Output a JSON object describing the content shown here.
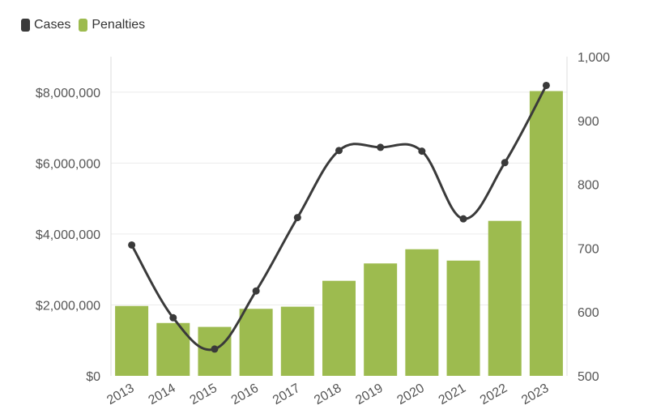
{
  "chart_data": {
    "type": "bar+line",
    "categories": [
      "2013",
      "2014",
      "2015",
      "2016",
      "2017",
      "2018",
      "2019",
      "2020",
      "2021",
      "2022",
      "2023"
    ],
    "series": [
      {
        "name": "Penalties",
        "type": "bar",
        "axis": "left",
        "color": "#9dbb4f",
        "values": [
          1970000,
          1490000,
          1380000,
          1890000,
          1950000,
          2680000,
          3170000,
          3570000,
          3250000,
          4370000,
          8030000
        ]
      },
      {
        "name": "Cases",
        "type": "line",
        "axis": "right",
        "color": "#3a3a3a",
        "values": [
          705,
          591,
          542,
          633,
          748,
          853,
          858,
          852,
          746,
          834,
          955
        ]
      }
    ],
    "y_left": {
      "min": 0,
      "max": 9000000,
      "ticks": [
        0,
        2000000,
        4000000,
        6000000,
        8000000
      ],
      "tick_labels": [
        "$0",
        "$2,000,000",
        "$4,000,000",
        "$6,000,000",
        "$8,000,000"
      ]
    },
    "y_right": {
      "min": 500,
      "max": 1000,
      "ticks": [
        500,
        600,
        700,
        800,
        900,
        1000
      ],
      "tick_labels": [
        "500",
        "600",
        "700",
        "800",
        "900",
        "1,000"
      ]
    },
    "x_tick_labels": [
      "2013",
      "2014",
      "2015",
      "2016",
      "2017",
      "2018",
      "2019",
      "2020",
      "2021",
      "2022",
      "2023"
    ],
    "legend_position": "top-left",
    "grid": true
  },
  "colors": {
    "axis_text": "#555555",
    "grid": "#ececec",
    "axis_line": "#dddddd"
  }
}
